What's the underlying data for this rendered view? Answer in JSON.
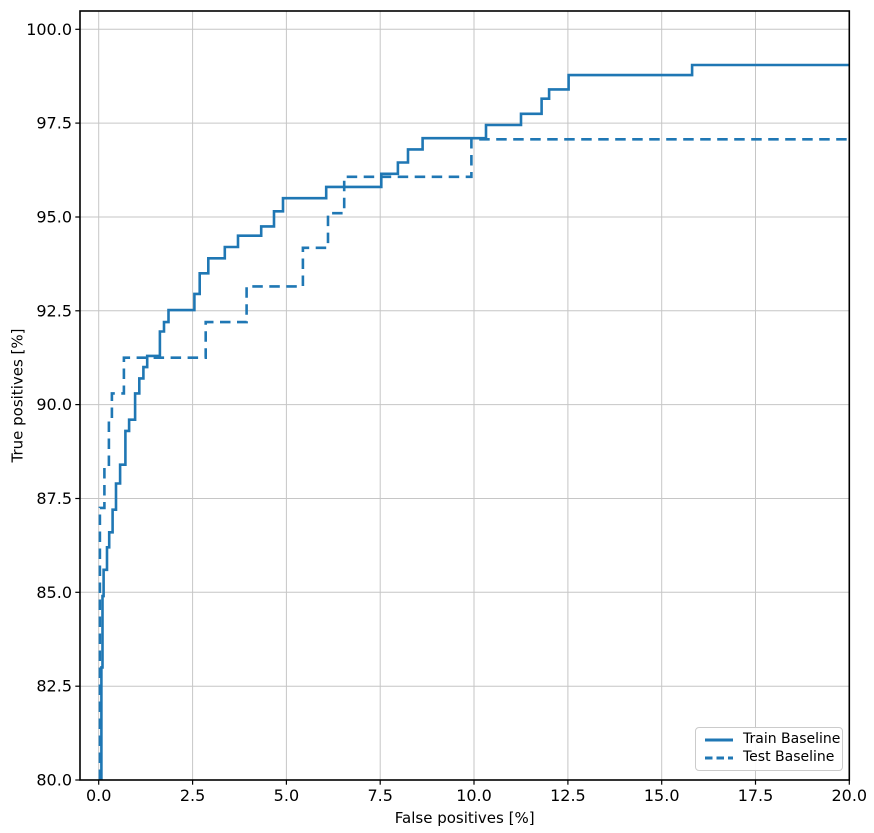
{
  "chart_data": {
    "type": "line",
    "subtype": "step-roc-curve",
    "title": "",
    "xlabel": "False positives [%]",
    "ylabel": "True positives [%]",
    "xlim": [
      -0.5,
      20
    ],
    "ylim": [
      80,
      100.5
    ],
    "grid": true,
    "legend_position": "lower right",
    "xticks": [
      0,
      2.5,
      5,
      7.5,
      10,
      12.5,
      15,
      17.5,
      20
    ],
    "xtick_labels": [
      "0.0",
      "2.5",
      "5.0",
      "7.5",
      "10.0",
      "12.5",
      "15.0",
      "17.5",
      "20.0"
    ],
    "yticks": [
      80,
      82.5,
      85,
      87.5,
      90,
      92.5,
      95,
      97.5,
      100
    ],
    "ytick_labels": [
      "80.0",
      "82.5",
      "85.0",
      "87.5",
      "90.0",
      "92.5",
      "95.0",
      "97.5",
      "100.0"
    ],
    "colors": {
      "line": "#1f77b4",
      "grid": "#c6c6c6",
      "spine": "#000000",
      "text": "#000000",
      "legend_border": "#cbcbcb"
    },
    "series": [
      {
        "name": "Train Baseline",
        "style": "solid",
        "step": true,
        "points": [
          [
            0.07,
            80
          ],
          [
            0.07,
            83
          ],
          [
            0.1,
            83
          ],
          [
            0.1,
            84.9
          ],
          [
            0.13,
            84.9
          ],
          [
            0.13,
            85.6
          ],
          [
            0.22,
            85.6
          ],
          [
            0.22,
            86.2
          ],
          [
            0.28,
            86.2
          ],
          [
            0.28,
            86.6
          ],
          [
            0.37,
            86.6
          ],
          [
            0.37,
            87.2
          ],
          [
            0.46,
            87.2
          ],
          [
            0.46,
            87.9
          ],
          [
            0.57,
            87.9
          ],
          [
            0.57,
            88.4
          ],
          [
            0.71,
            88.4
          ],
          [
            0.71,
            89.3
          ],
          [
            0.81,
            89.3
          ],
          [
            0.81,
            89.6
          ],
          [
            0.97,
            89.6
          ],
          [
            0.97,
            90.3
          ],
          [
            1.08,
            90.3
          ],
          [
            1.08,
            90.7
          ],
          [
            1.19,
            90.7
          ],
          [
            1.19,
            91.0
          ],
          [
            1.29,
            91.0
          ],
          [
            1.29,
            91.3
          ],
          [
            1.63,
            91.3
          ],
          [
            1.63,
            91.95
          ],
          [
            1.74,
            91.95
          ],
          [
            1.74,
            92.2
          ],
          [
            1.86,
            92.2
          ],
          [
            1.86,
            92.52
          ],
          [
            2.55,
            92.52
          ],
          [
            2.55,
            92.95
          ],
          [
            2.69,
            92.95
          ],
          [
            2.69,
            93.5
          ],
          [
            2.92,
            93.5
          ],
          [
            2.92,
            93.9
          ],
          [
            3.36,
            93.9
          ],
          [
            3.36,
            94.2
          ],
          [
            3.71,
            94.2
          ],
          [
            3.71,
            94.5
          ],
          [
            4.33,
            94.5
          ],
          [
            4.33,
            94.75
          ],
          [
            4.67,
            94.75
          ],
          [
            4.67,
            95.15
          ],
          [
            4.91,
            95.15
          ],
          [
            4.91,
            95.5
          ],
          [
            6.06,
            95.5
          ],
          [
            6.06,
            95.8
          ],
          [
            7.53,
            95.8
          ],
          [
            7.53,
            96.15
          ],
          [
            7.97,
            96.15
          ],
          [
            7.97,
            96.45
          ],
          [
            8.24,
            96.45
          ],
          [
            8.24,
            96.8
          ],
          [
            8.63,
            96.8
          ],
          [
            8.63,
            97.1
          ],
          [
            10.32,
            97.1
          ],
          [
            10.32,
            97.45
          ],
          [
            11.25,
            97.45
          ],
          [
            11.25,
            97.75
          ],
          [
            11.8,
            97.75
          ],
          [
            11.8,
            98.15
          ],
          [
            12.0,
            98.15
          ],
          [
            12.0,
            98.4
          ],
          [
            12.52,
            98.4
          ],
          [
            12.52,
            98.78
          ],
          [
            15.81,
            98.78
          ],
          [
            15.81,
            99.05
          ],
          [
            20,
            99.05
          ]
        ]
      },
      {
        "name": "Test Baseline",
        "style": "dashed",
        "step": true,
        "points": [
          [
            0.03,
            80
          ],
          [
            0.03,
            87.25
          ],
          [
            0.15,
            87.25
          ],
          [
            0.15,
            88.35
          ],
          [
            0.27,
            88.35
          ],
          [
            0.27,
            89.6
          ],
          [
            0.35,
            89.6
          ],
          [
            0.35,
            90.3
          ],
          [
            0.67,
            90.3
          ],
          [
            0.67,
            91.25
          ],
          [
            2.85,
            91.25
          ],
          [
            2.85,
            92.2
          ],
          [
            3.94,
            92.2
          ],
          [
            3.94,
            93.15
          ],
          [
            5.44,
            93.15
          ],
          [
            5.44,
            94.18
          ],
          [
            6.11,
            94.18
          ],
          [
            6.11,
            95.1
          ],
          [
            6.54,
            95.1
          ],
          [
            6.54,
            96.07
          ],
          [
            9.93,
            96.07
          ],
          [
            9.93,
            97.07
          ],
          [
            20,
            97.07
          ]
        ]
      }
    ]
  }
}
